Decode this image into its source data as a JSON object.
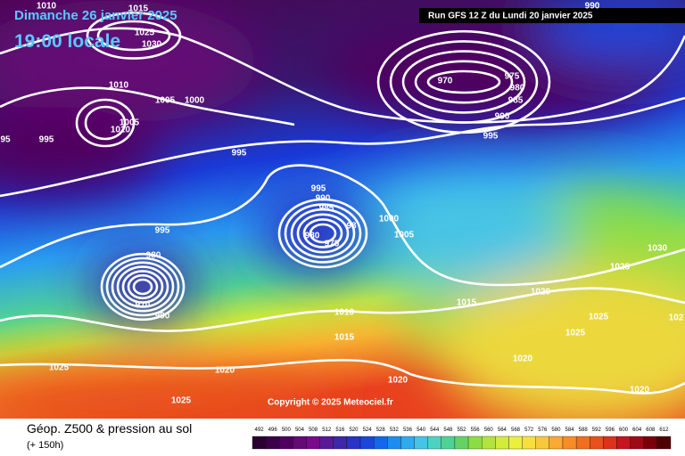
{
  "header": {
    "date": "Dimanche 26 janvier 2025",
    "time": "19:00 locale",
    "run": "Run GFS 12 Z du Lundi 20 janvier 2025"
  },
  "copyright": "Copyright © 2025 Meteociel.fr",
  "footer": {
    "title": "Géop. Z500 & pression au sol",
    "lead": "(+ 150h)"
  },
  "isobar_labels": [
    "1010",
    "1015",
    "1025",
    "1030",
    "1010",
    "1005",
    "1000",
    "1005",
    "1010",
    "995",
    "95",
    "995",
    "995",
    "990",
    "985",
    "980",
    "975",
    "98",
    "1000",
    "1005",
    "995",
    "980",
    "970",
    "990",
    "1010",
    "1015",
    "1015",
    "1020",
    "1025",
    "1030",
    "1025",
    "1025",
    "102",
    "1020",
    "1020",
    "1020",
    "1020",
    "1025",
    "1025",
    "970",
    "975",
    "980",
    "985",
    "990",
    "995",
    "990"
  ],
  "legend": {
    "values": [
      492,
      496,
      500,
      504,
      508,
      512,
      516,
      520,
      524,
      528,
      532,
      536,
      540,
      544,
      548,
      552,
      556,
      560,
      564,
      568,
      572,
      576,
      580,
      584,
      588,
      592,
      596,
      600,
      604,
      608,
      612
    ],
    "colors": [
      "#2a0030",
      "#3c0048",
      "#50005e",
      "#640a74",
      "#780a8a",
      "#5a1a96",
      "#3c28a8",
      "#2a32c8",
      "#1a46dc",
      "#1466ec",
      "#1c8cf0",
      "#32aaee",
      "#46c4e6",
      "#4cd2c0",
      "#50d294",
      "#66d266",
      "#8cdc46",
      "#b4e43c",
      "#d2ec3c",
      "#ecf03c",
      "#f8e03c",
      "#f8c83c",
      "#f8aa32",
      "#f88c28",
      "#f06e1e",
      "#e8501e",
      "#dc321e",
      "#c8141e",
      "#a00a14",
      "#78000a",
      "#500000"
    ]
  }
}
